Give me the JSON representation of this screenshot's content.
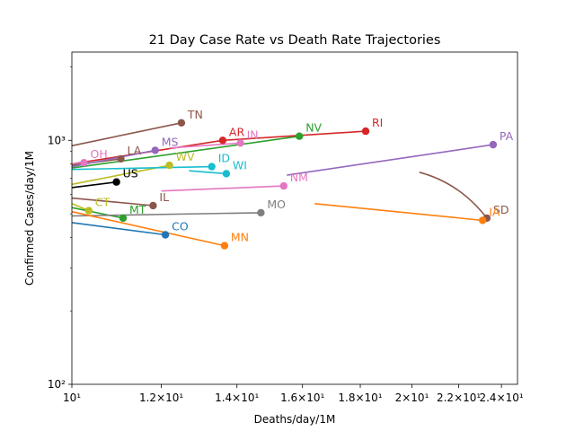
{
  "chart_data": {
    "type": "line",
    "title": "21 Day Case Rate vs Death Rate Trajectories",
    "xlabel": "Deaths/day/1M",
    "ylabel": "Confirmed Cases/day/1M",
    "xscale": "log",
    "yscale": "log",
    "xlim": [
      10,
      24.8
    ],
    "ylim": [
      100,
      2300
    ],
    "x_ticks": [
      {
        "value": 10,
        "label": "10¹"
      },
      {
        "value": 12,
        "label": "1.2×10¹"
      },
      {
        "value": 14,
        "label": "1.4×10¹"
      },
      {
        "value": 16,
        "label": "1.6×10¹"
      },
      {
        "value": 18,
        "label": "1.8×10¹"
      },
      {
        "value": 20,
        "label": "2×10¹"
      },
      {
        "value": 22,
        "label": "2.2×10¹"
      },
      {
        "value": 24,
        "label": "2.4×10¹"
      }
    ],
    "y_ticks": [
      {
        "value": 100,
        "label": "10²"
      },
      {
        "value": 1000,
        "label": "10³"
      }
    ],
    "series": [
      {
        "name": "TN",
        "color": "#8c564b",
        "points": [
          [
            10.0,
            950
          ],
          [
            12.5,
            1180
          ]
        ]
      },
      {
        "name": "AR",
        "color": "#d62728",
        "points": [
          [
            10.0,
            800
          ],
          [
            13.6,
            1000
          ]
        ]
      },
      {
        "name": "IN",
        "color": "#e377c2",
        "points": [
          [
            12.2,
            930
          ],
          [
            14.1,
            975
          ]
        ]
      },
      {
        "name": "NV",
        "color": "#2ca02c",
        "points": [
          [
            10.0,
            770
          ],
          [
            15.9,
            1040
          ]
        ]
      },
      {
        "name": "RI",
        "color": "#d62728",
        "points": [
          [
            13.6,
            1000
          ],
          [
            18.2,
            1090
          ]
        ]
      },
      {
        "name": "PA",
        "color": "#9467bd",
        "points": [
          [
            15.5,
            720
          ],
          [
            23.6,
            960
          ]
        ]
      },
      {
        "name": "OH",
        "color": "#e377c2",
        "points": [
          [
            10.0,
            800
          ],
          [
            10.25,
            810
          ]
        ]
      },
      {
        "name": "LA",
        "color": "#8c564b",
        "points": [
          [
            10.0,
            790
          ],
          [
            11.05,
            840
          ]
        ]
      },
      {
        "name": "MS",
        "color": "#9467bd",
        "points": [
          [
            10.0,
            780
          ],
          [
            11.85,
            910
          ]
        ]
      },
      {
        "name": "WV",
        "color": "#bcbd22",
        "points": [
          [
            10.0,
            660
          ],
          [
            12.2,
            790
          ]
        ]
      },
      {
        "name": "ID",
        "color": "#17becf",
        "points": [
          [
            10.0,
            760
          ],
          [
            13.3,
            780
          ]
        ]
      },
      {
        "name": "WI",
        "color": "#17becf",
        "points": [
          [
            12.7,
            750
          ],
          [
            13.7,
            730
          ]
        ]
      },
      {
        "name": "US",
        "color": "#000000",
        "points": [
          [
            10.0,
            640
          ],
          [
            10.95,
            675
          ]
        ]
      },
      {
        "name": "NM",
        "color": "#e377c2",
        "points": [
          [
            12.0,
            620
          ],
          [
            15.4,
            650
          ]
        ]
      },
      {
        "name": "IL",
        "color": "#8c564b",
        "points": [
          [
            10.0,
            580
          ],
          [
            11.8,
            540
          ]
        ]
      },
      {
        "name": "CT",
        "color": "#bcbd22",
        "points": [
          [
            10.0,
            550
          ],
          [
            10.35,
            515
          ]
        ]
      },
      {
        "name": "MT",
        "color": "#2ca02c",
        "points": [
          [
            10.0,
            530
          ],
          [
            11.1,
            480
          ]
        ]
      },
      {
        "name": "MO",
        "color": "#7f7f7f",
        "points": [
          [
            10.0,
            490
          ],
          [
            14.7,
            505
          ]
        ]
      },
      {
        "name": "SD",
        "color": "#8c564b",
        "points": [
          [
            20.3,
            740
          ],
          [
            23.3,
            480
          ]
        ]
      },
      {
        "name": "IA",
        "color": "#ff7f0e",
        "points": [
          [
            16.4,
            550
          ],
          [
            23.1,
            470
          ]
        ]
      },
      {
        "name": "CO",
        "color": "#1f77b4",
        "points": [
          [
            10.0,
            460
          ],
          [
            12.1,
            410
          ]
        ]
      },
      {
        "name": "MN",
        "color": "#ff7f0e",
        "points": [
          [
            10.0,
            510
          ],
          [
            13.65,
            370
          ]
        ]
      }
    ]
  }
}
